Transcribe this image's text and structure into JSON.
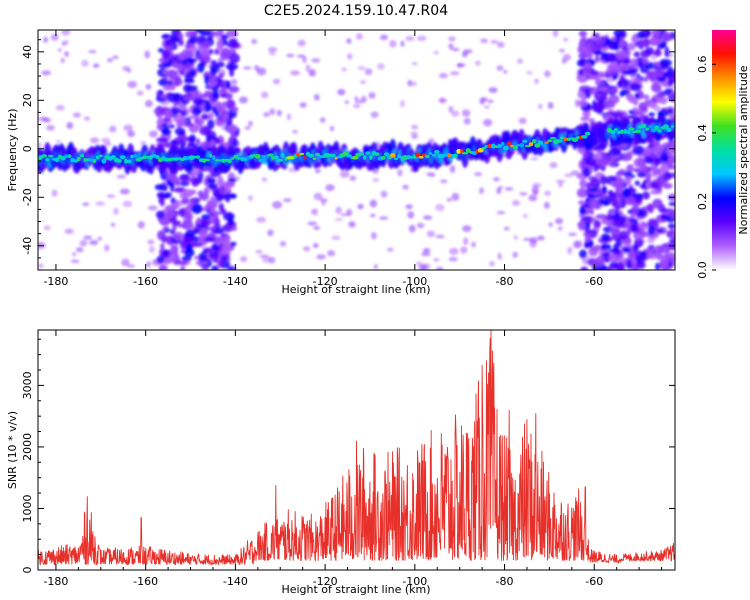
{
  "title": "C2E5.2024.159.10.47.R04",
  "colors": {
    "snr_line": "#e8302a",
    "axis": "#000000",
    "colormap": [
      "#ffffff",
      "#b060ff",
      "#5a00ff",
      "#0000ff",
      "#00c8ff",
      "#00e0a0",
      "#40e020",
      "#ffff00",
      "#ff9000",
      "#ff1000",
      "#ff0090"
    ]
  },
  "chart_data": [
    {
      "type": "heatmap",
      "xlabel": "Height of straight line (km)",
      "ylabel": "Frequency (Hz)",
      "xlim": [
        -184,
        -42
      ],
      "ylim": [
        -50,
        49
      ],
      "xticks": [
        -180,
        -160,
        -140,
        -120,
        -100,
        -80,
        -60
      ],
      "xtick_labels": [
        "-180",
        "-160",
        "-140",
        "-120",
        "-100",
        "-80",
        "-60"
      ],
      "yticks": [
        -40,
        -20,
        0,
        20,
        40
      ],
      "ytick_labels": [
        "-40",
        "-20",
        "0",
        "20",
        "40"
      ],
      "colorbar": {
        "label": "Normalized spectral amplitude",
        "range": [
          0.0,
          0.7
        ],
        "ticks": [
          0.0,
          0.2,
          0.4,
          0.6
        ],
        "tick_labels": [
          "0.0",
          "0.2",
          "0.4",
          "0.6"
        ]
      },
      "signal_ridge": [
        [
          -184,
          -4
        ],
        [
          -160,
          -4
        ],
        [
          -140,
          -4
        ],
        [
          -120,
          -3
        ],
        [
          -100,
          -3
        ],
        [
          -90,
          -2
        ],
        [
          -80,
          1
        ],
        [
          -70,
          3
        ],
        [
          -64,
          5
        ],
        [
          -50,
          8
        ],
        [
          -42,
          9
        ]
      ],
      "noise_bands_x": [
        [
          -157,
          -140
        ],
        [
          -63,
          -42
        ]
      ],
      "grid": false
    },
    {
      "type": "line",
      "xlabel": "Height of straight line (km)",
      "ylabel": "SNR (10 * v/v)",
      "xlim": [
        -184,
        -42
      ],
      "ylim": [
        0,
        3900
      ],
      "xticks": [
        -180,
        -160,
        -140,
        -120,
        -100,
        -80,
        -60
      ],
      "xtick_labels": [
        "-180",
        "-160",
        "-140",
        "-120",
        "-100",
        "-80",
        "-60"
      ],
      "yticks": [
        0,
        1000,
        2000,
        3000
      ],
      "ytick_labels": [
        "0",
        "1000",
        "2000",
        "3000"
      ],
      "envelope": {
        "x": [
          -184,
          -175,
          -173,
          -170,
          -160,
          -150,
          -140,
          -136,
          -133,
          -128,
          -122,
          -118,
          -115,
          -112,
          -108,
          -104,
          -100,
          -96,
          -92,
          -88,
          -85,
          -83,
          -81,
          -78,
          -75,
          -70,
          -66,
          -63,
          -61,
          -55,
          -50,
          -45,
          -42
        ],
        "y": [
          350,
          450,
          1200,
          350,
          400,
          280,
          250,
          600,
          800,
          1000,
          900,
          1300,
          1700,
          2100,
          1900,
          2000,
          2050,
          2300,
          2500,
          2600,
          3300,
          3900,
          2500,
          1800,
          2600,
          1600,
          1200,
          1350,
          350,
          250,
          300,
          330,
          460
        ]
      },
      "spikes": [
        [
          -173,
          1200
        ],
        [
          -161,
          850
        ],
        [
          -131,
          1380
        ],
        [
          -113,
          2100
        ],
        [
          -109,
          1900
        ],
        [
          -91,
          2200
        ],
        [
          -85,
          3330
        ],
        [
          -83,
          3900
        ],
        [
          -79,
          2600
        ],
        [
          -73,
          2550
        ],
        [
          -62,
          1350
        ],
        [
          -42,
          470
        ]
      ],
      "grid": false
    }
  ]
}
